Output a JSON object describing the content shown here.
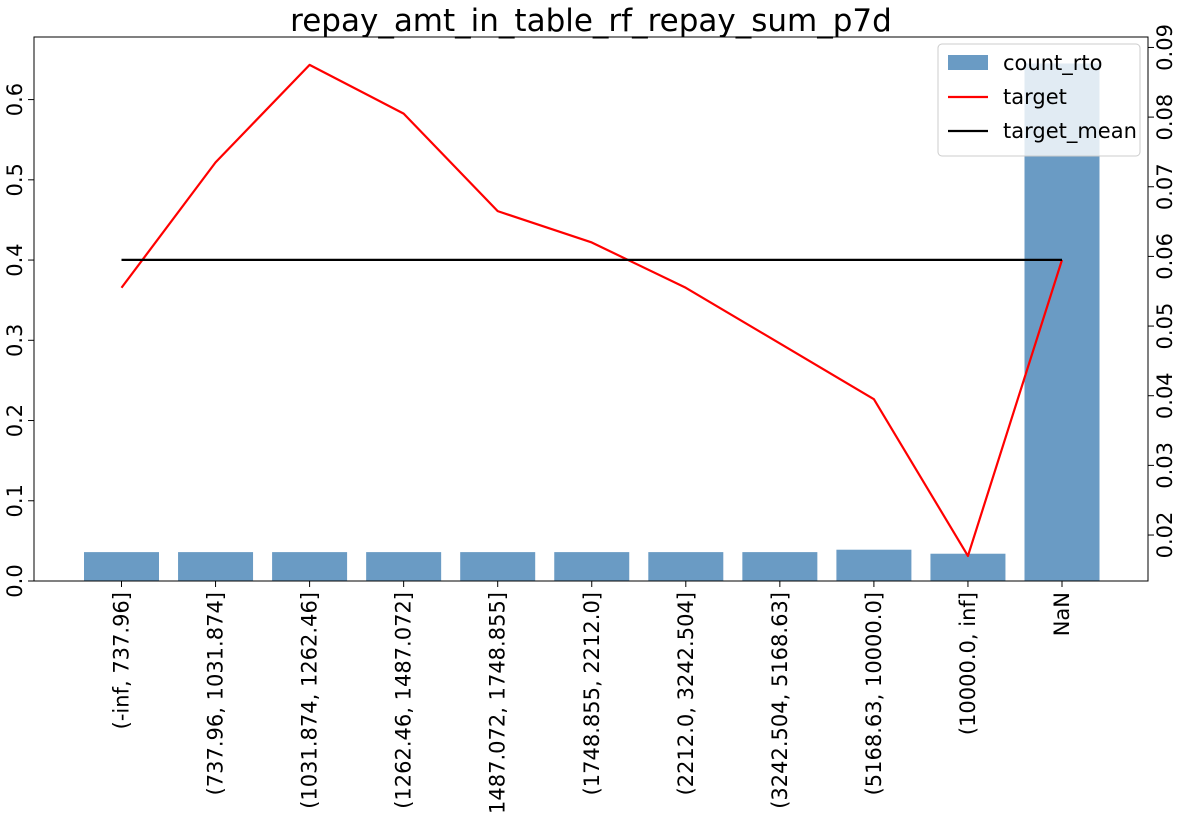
{
  "chart_data": {
    "type": "bar",
    "title": "repay_amt_in_table_rf_repay_sum_p7d",
    "xlabel": "",
    "ylabel": "",
    "categories": [
      "(-inf, 737.96]",
      "(737.96, 1031.874]",
      "(1031.874, 1262.46]",
      "(1262.46, 1487.072]",
      "(1487.072, 1748.855]",
      "(1748.855, 2212.0]",
      "(2212.0, 3242.504]",
      "(3242.504, 5168.63]",
      "(5168.63, 10000.0]",
      "(10000.0, inf]",
      "NaN"
    ],
    "series": [
      {
        "name": "count_rto",
        "type": "bar",
        "axis": "left",
        "color": "#6a9bc4",
        "values": [
          0.036,
          0.036,
          0.036,
          0.036,
          0.036,
          0.036,
          0.036,
          0.036,
          0.039,
          0.034,
          0.645
        ]
      },
      {
        "name": "target",
        "type": "line",
        "axis": "right",
        "color": "#ff0000",
        "values": [
          0.0555,
          0.0735,
          0.0875,
          0.0805,
          0.0665,
          0.062,
          0.0555,
          0.0475,
          0.0395,
          0.017,
          0.0595
        ]
      },
      {
        "name": "target_mean",
        "type": "line",
        "axis": "right",
        "color": "#000000",
        "values": [
          0.0595,
          0.0595,
          0.0595,
          0.0595,
          0.0595,
          0.0595,
          0.0595,
          0.0595,
          0.0595,
          0.0595,
          0.0595
        ]
      }
    ],
    "y_left": {
      "ylim": [
        0,
        0.678
      ],
      "ticks": [
        0.0,
        0.1,
        0.2,
        0.3,
        0.4,
        0.5,
        0.6
      ],
      "tick_labels": [
        "0.0",
        "0.1",
        "0.2",
        "0.3",
        "0.4",
        "0.5",
        "0.6"
      ]
    },
    "y_right": {
      "ylim": [
        0.0134,
        0.0915
      ],
      "ticks": [
        0.02,
        0.03,
        0.04,
        0.05,
        0.06,
        0.07,
        0.08,
        0.09
      ],
      "tick_labels": [
        "0.02",
        "0.03",
        "0.04",
        "0.05",
        "0.06",
        "0.07",
        "0.08",
        "0.09"
      ]
    },
    "grid": false,
    "legend": {
      "placement": "top-right",
      "entries": [
        "count_rto",
        "target",
        "target_mean"
      ]
    }
  }
}
